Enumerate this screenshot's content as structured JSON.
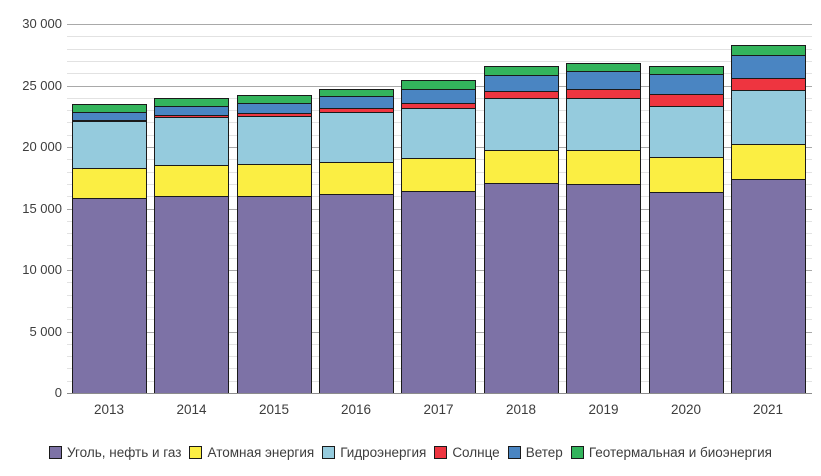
{
  "chart_data": {
    "type": "bar",
    "stacked": true,
    "title": "",
    "xlabel": "",
    "ylabel": "",
    "categories": [
      "2013",
      "2014",
      "2015",
      "2016",
      "2017",
      "2018",
      "2019",
      "2020",
      "2021"
    ],
    "series": [
      {
        "name": "Уголь, нефть и газ",
        "color": "#7d72a6",
        "values": [
          15850,
          16000,
          16000,
          16200,
          16430,
          17080,
          16960,
          16320,
          17400
        ]
      },
      {
        "name": "Атомная энергия",
        "color": "#fbee43",
        "values": [
          2480,
          2540,
          2610,
          2620,
          2650,
          2700,
          2790,
          2840,
          2850
        ]
      },
      {
        "name": "Гидроэнергия",
        "color": "#95cbdd",
        "values": [
          3750,
          3890,
          3880,
          4010,
          4060,
          4190,
          4230,
          4200,
          4350
        ]
      },
      {
        "name": "Солнце",
        "color": "#ee3540",
        "values": [
          140,
          200,
          260,
          330,
          450,
          590,
          720,
          950,
          1030
        ]
      },
      {
        "name": "Ветер",
        "color": "#4a85c2",
        "values": [
          640,
          720,
          820,
          960,
          1140,
          1300,
          1450,
          1630,
          1870
        ]
      },
      {
        "name": "Геотермальная и биоэнергия",
        "color": "#33b45c",
        "values": [
          600,
          620,
          660,
          620,
          700,
          720,
          680,
          650,
          830
        ]
      }
    ],
    "totals": [
      23460,
      23970,
      24230,
      24740,
      25430,
      26580,
      26830,
      26590,
      28330
    ],
    "ylim": [
      0,
      30000
    ],
    "ytick_interval_major": 5000,
    "ytick_interval_minor": 1000,
    "ytick_labels": [
      "0",
      "5 000",
      "10 000",
      "15 000",
      "20 000",
      "25 000",
      "30 000"
    ],
    "grid": "on",
    "legend_position": "bottom"
  },
  "style": {
    "bar_border_color": "#1a1a1a",
    "gridline_major_color": "#a9a9a9",
    "gridline_minor_color": "#e2e2e2",
    "baseline_color": "#8c8c8c",
    "text_color": "#3d3d3d",
    "background": "#ffffff"
  }
}
